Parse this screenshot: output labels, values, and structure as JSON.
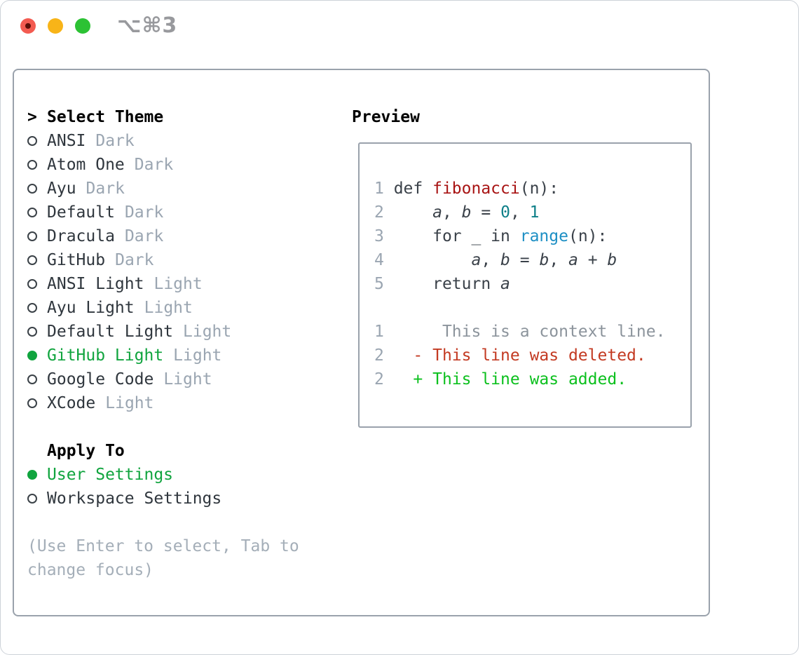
{
  "titlebar": {
    "title": "⌥⌘3"
  },
  "icons": {
    "close_button": "red-circle-icon",
    "close_unsaved_dot": "dark-dot-icon",
    "minimize_button": "yellow-circle-icon",
    "zoom_button": "green-circle-icon",
    "radio_unselected": "circle-outline-icon",
    "radio_selected": "circle-filled-icon"
  },
  "menu": {
    "prompt": ">",
    "title": "Select Theme",
    "themes": [
      {
        "name": "ANSI",
        "variant": "Dark",
        "selected": false
      },
      {
        "name": "Atom One",
        "variant": "Dark",
        "selected": false
      },
      {
        "name": "Ayu",
        "variant": "Dark",
        "selected": false
      },
      {
        "name": "Default",
        "variant": "Dark",
        "selected": false
      },
      {
        "name": "Dracula",
        "variant": "Dark",
        "selected": false
      },
      {
        "name": "GitHub",
        "variant": "Dark",
        "selected": false
      },
      {
        "name": "ANSI Light",
        "variant": "Light",
        "selected": false
      },
      {
        "name": "Ayu Light",
        "variant": "Light",
        "selected": false
      },
      {
        "name": "Default Light",
        "variant": "Light",
        "selected": false
      },
      {
        "name": "GitHub Light",
        "variant": "Light",
        "selected": true
      },
      {
        "name": "Google Code",
        "variant": "Light",
        "selected": false
      },
      {
        "name": "XCode",
        "variant": "Light",
        "selected": false
      }
    ],
    "apply_to": {
      "title": "Apply To",
      "options": [
        {
          "label": "User Settings",
          "selected": true
        },
        {
          "label": "Workspace Settings",
          "selected": false
        }
      ]
    },
    "hint_lines": [
      "(Use Enter to select, Tab to",
      "change focus)"
    ]
  },
  "preview": {
    "title": "Preview",
    "lines": [
      {
        "kind": "code",
        "segments": [
          {
            "t": "1 ",
            "s": "lineno"
          },
          {
            "t": "def ",
            "s": "code"
          },
          {
            "t": "fibonacci",
            "s": "func"
          },
          {
            "t": "(n):",
            "s": "code"
          }
        ]
      },
      {
        "kind": "code",
        "segments": [
          {
            "t": "2",
            "s": "lineno"
          },
          {
            "t": "     ",
            "s": "code"
          },
          {
            "t": "a",
            "s": "var"
          },
          {
            "t": ", ",
            "s": "code"
          },
          {
            "t": "b",
            "s": "var"
          },
          {
            "t": " = ",
            "s": "code"
          },
          {
            "t": "0",
            "s": "num"
          },
          {
            "t": ", ",
            "s": "code"
          },
          {
            "t": "1",
            "s": "num"
          }
        ]
      },
      {
        "kind": "code",
        "segments": [
          {
            "t": "3",
            "s": "lineno"
          },
          {
            "t": "     for _ in ",
            "s": "code"
          },
          {
            "t": "range",
            "s": "builtin"
          },
          {
            "t": "(n):",
            "s": "code"
          }
        ]
      },
      {
        "kind": "code",
        "segments": [
          {
            "t": "4",
            "s": "lineno"
          },
          {
            "t": "         ",
            "s": "code"
          },
          {
            "t": "a",
            "s": "var"
          },
          {
            "t": ", ",
            "s": "code"
          },
          {
            "t": "b",
            "s": "var"
          },
          {
            "t": " = ",
            "s": "code"
          },
          {
            "t": "b",
            "s": "var"
          },
          {
            "t": ", ",
            "s": "code"
          },
          {
            "t": "a",
            "s": "var"
          },
          {
            "t": " + ",
            "s": "code"
          },
          {
            "t": "b",
            "s": "var"
          }
        ]
      },
      {
        "kind": "code",
        "segments": [
          {
            "t": "5",
            "s": "lineno"
          },
          {
            "t": "     return ",
            "s": "code"
          },
          {
            "t": "a",
            "s": "var"
          }
        ]
      },
      {
        "kind": "blank",
        "segments": []
      },
      {
        "kind": "context",
        "segments": [
          {
            "t": "1",
            "s": "lineno"
          },
          {
            "t": "      This is a context line.",
            "s": "context"
          }
        ]
      },
      {
        "kind": "deleted",
        "segments": [
          {
            "t": "2",
            "s": "lineno"
          },
          {
            "t": "   - This line was deleted.",
            "s": "deleted"
          }
        ]
      },
      {
        "kind": "added",
        "segments": [
          {
            "t": "2",
            "s": "lineno"
          },
          {
            "t": "   + This line was added.",
            "s": "added"
          }
        ]
      }
    ]
  },
  "colors": {
    "header_text": "#000000",
    "item_text": "#2f363d",
    "muted_text": "#9aa5b1",
    "hint_text": "#a4aeb8",
    "selected_green": "#10a43e",
    "radio_outline": "#3a4147",
    "panel_border": "#9aa2ac",
    "line_number": "#9aa5b1",
    "code_text": "#3a4149",
    "function_red": "#a81414",
    "number_teal": "#0e7f88",
    "builtin_blue": "#1d8fc4",
    "diff_context": "#8c949c",
    "diff_deleted": "#c33a22",
    "diff_added": "#0cc01e",
    "titlebar_text": "#98999d",
    "traffic_red": "#f35b51",
    "traffic_yellow": "#f8b418",
    "traffic_green": "#2cc234"
  }
}
